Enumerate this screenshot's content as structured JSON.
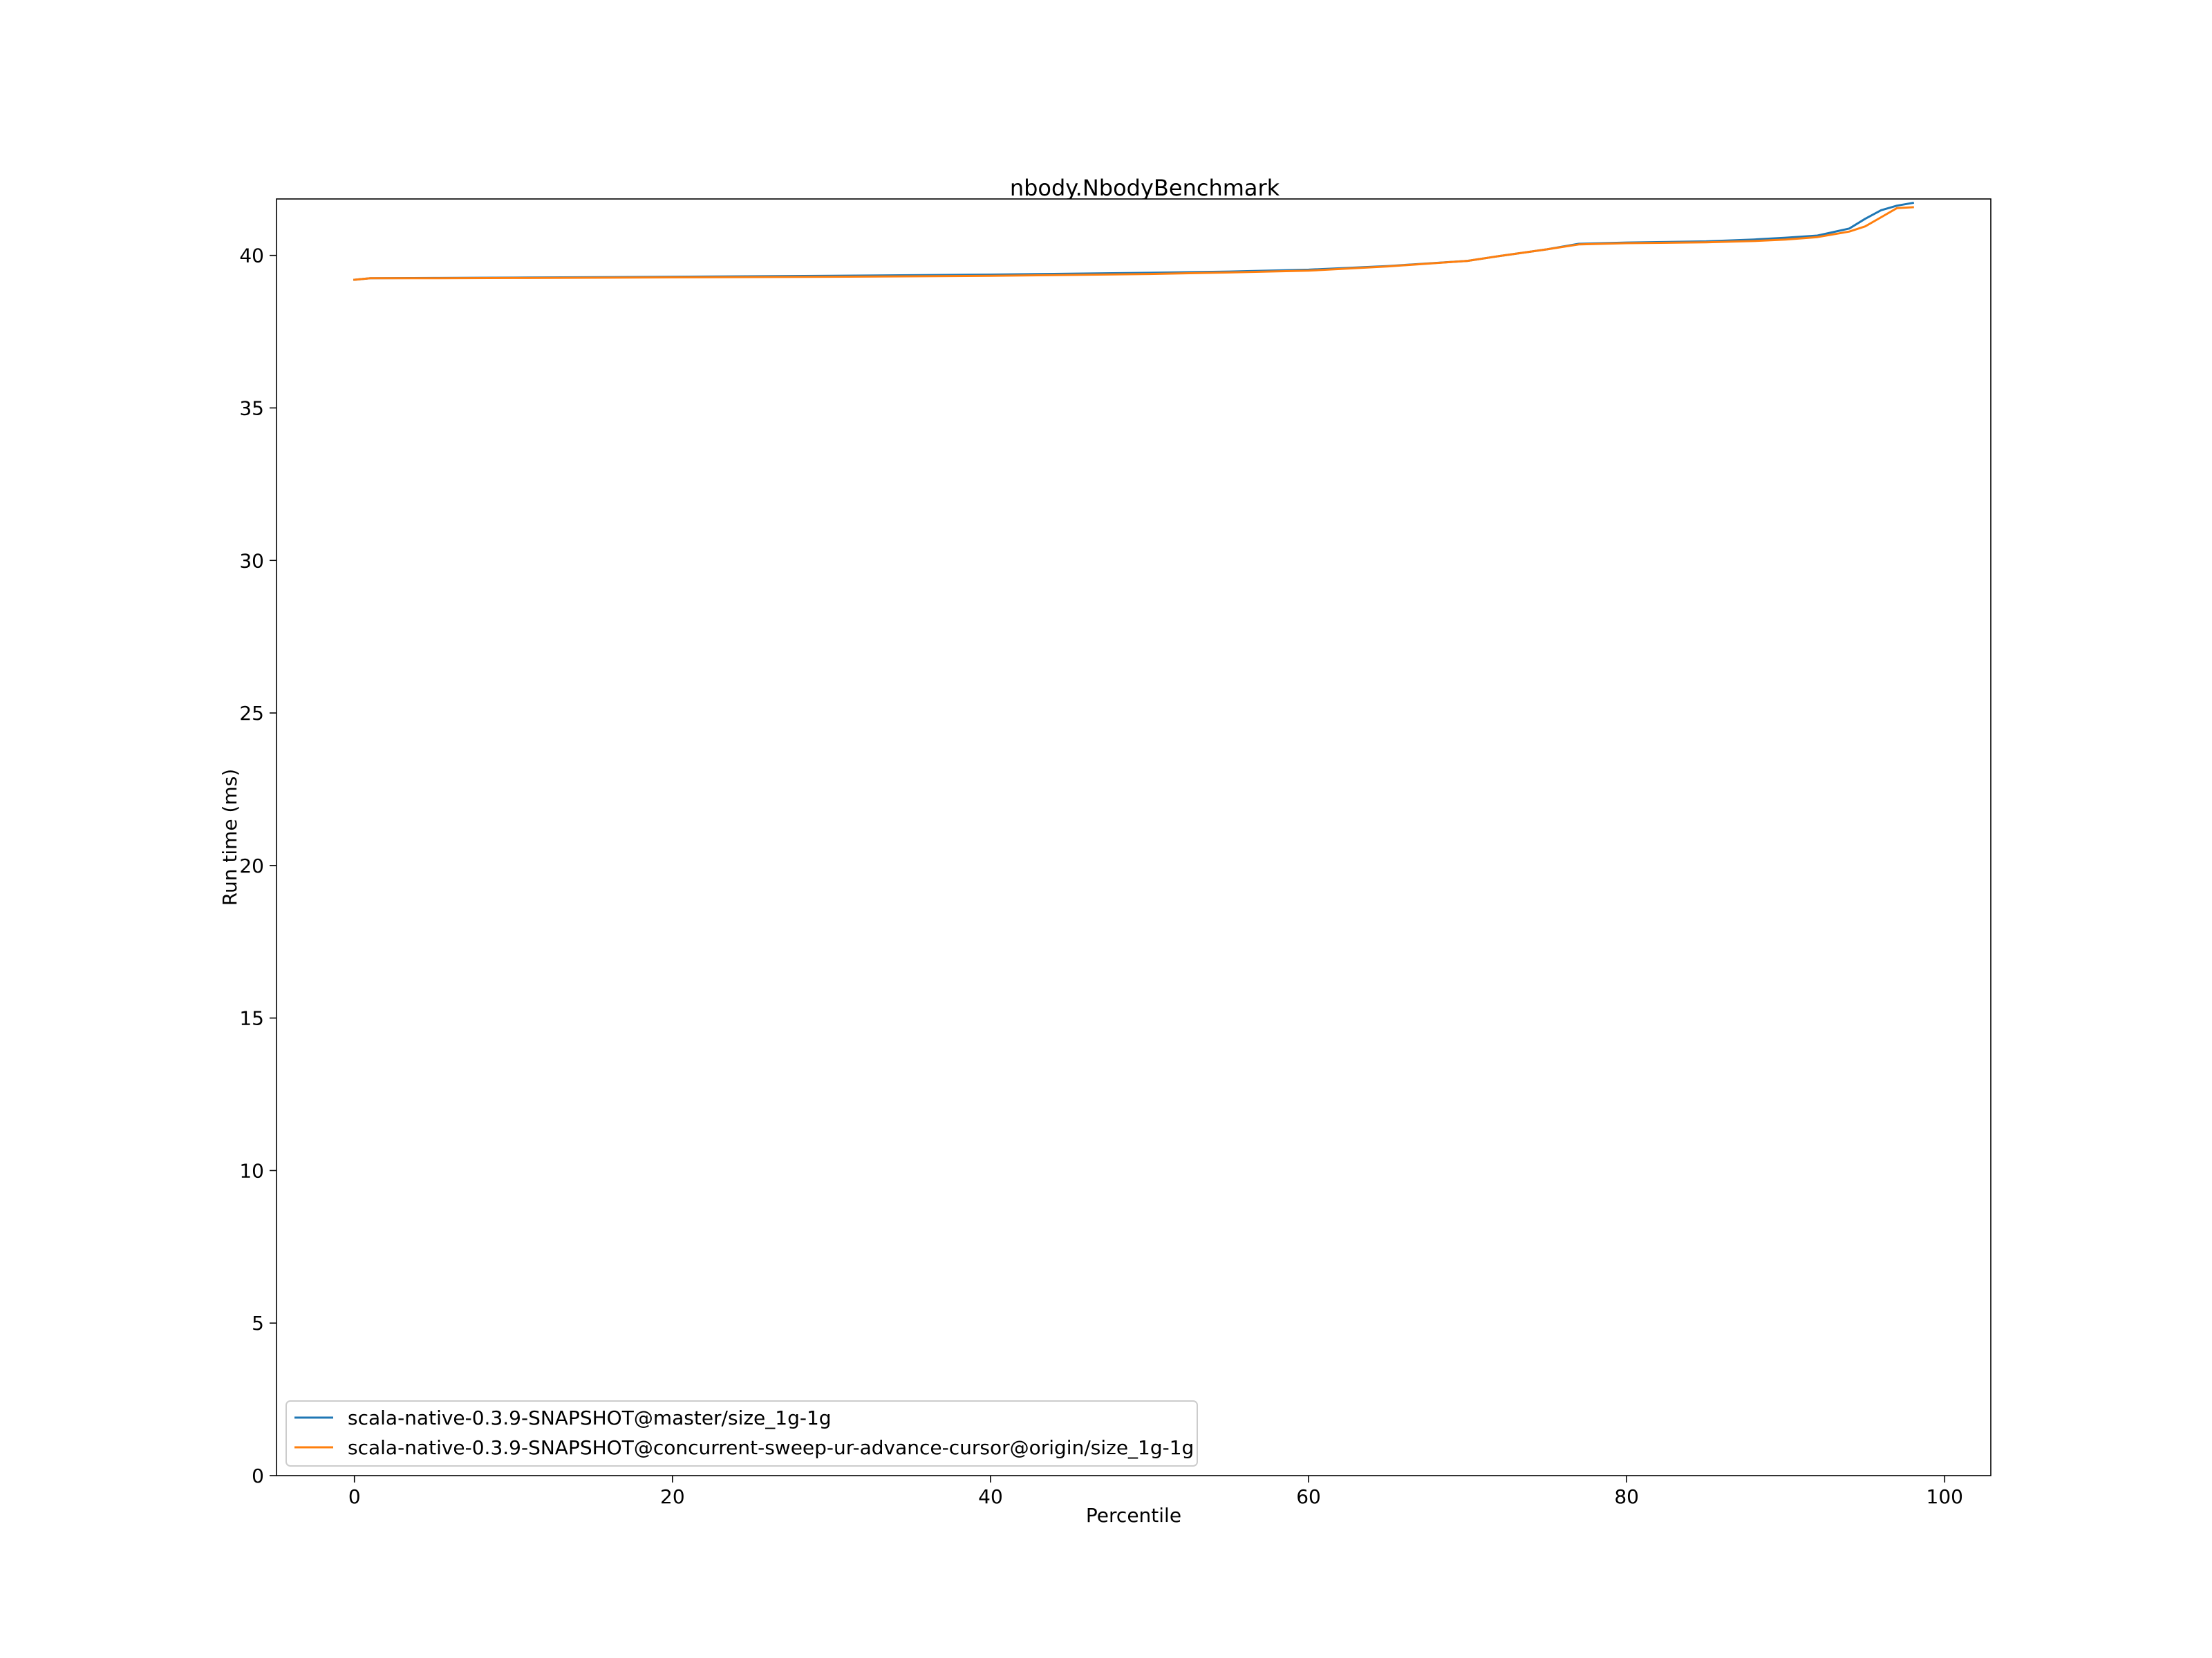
{
  "chart_data": {
    "type": "line",
    "title": "nbody.NbodyBenchmark",
    "xlabel": "Percentile",
    "ylabel": "Run time (ms)",
    "xlim": [
      -4.9,
      102.9
    ],
    "ylim": [
      0,
      41.85
    ],
    "xticks": [
      "0",
      "20",
      "40",
      "60",
      "80",
      "100"
    ],
    "yticks": [
      "0",
      "5",
      "10",
      "15",
      "20",
      "25",
      "30",
      "35",
      "40"
    ],
    "grid": false,
    "legend_position": "lower-left",
    "series": [
      {
        "name": "scala-native-0.3.9-SNAPSHOT@master/size_1g-1g",
        "color": "#1f77b4",
        "x": [
          0,
          1,
          5,
          10,
          20,
          30,
          40,
          50,
          55,
          60,
          65,
          70,
          72,
          75,
          77,
          80,
          85,
          88,
          90,
          92,
          94,
          95,
          96,
          97,
          98
        ],
        "y": [
          39.2,
          39.25,
          39.26,
          39.27,
          39.3,
          39.33,
          39.37,
          39.43,
          39.47,
          39.53,
          39.65,
          39.82,
          39.98,
          40.2,
          40.38,
          40.42,
          40.46,
          40.52,
          40.58,
          40.65,
          40.88,
          41.2,
          41.48,
          41.63,
          41.72
        ]
      },
      {
        "name": "scala-native-0.3.9-SNAPSHOT@concurrent-sweep-ur-advance-cursor@origin/size_1g-1g",
        "color": "#ff7f0e",
        "x": [
          0,
          1,
          5,
          10,
          20,
          30,
          40,
          50,
          55,
          60,
          65,
          70,
          72,
          75,
          77,
          80,
          85,
          88,
          90,
          92,
          94,
          95,
          96,
          97,
          98
        ],
        "y": [
          39.2,
          39.25,
          39.25,
          39.26,
          39.28,
          39.3,
          39.33,
          39.39,
          39.44,
          39.5,
          39.64,
          39.82,
          39.98,
          40.2,
          40.36,
          40.4,
          40.43,
          40.47,
          40.52,
          40.6,
          40.78,
          40.95,
          41.25,
          41.55,
          41.58
        ]
      }
    ]
  }
}
